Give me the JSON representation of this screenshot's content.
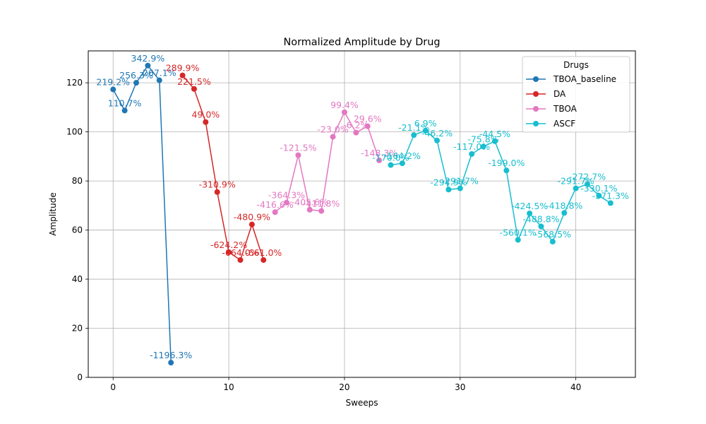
{
  "chart_data": {
    "type": "line",
    "title": "Normalized Amplitude by Drug",
    "xlabel": "Sweeps",
    "ylabel": "Amplitude",
    "xlim": [
      -2.15,
      45.15
    ],
    "ylim": [
      0,
      133
    ],
    "xticks": [
      0,
      10,
      20,
      30,
      40
    ],
    "yticks": [
      0,
      20,
      40,
      60,
      80,
      100,
      120
    ],
    "grid": true,
    "legend": {
      "title": "Drugs",
      "position": "top-right"
    },
    "series": [
      {
        "name": "TBOA_baseline",
        "color": "#1f77b4",
        "x": [
          0,
          1,
          2,
          3,
          4,
          5
        ],
        "y": [
          117.3,
          108.7,
          120.0,
          127.0,
          121.0,
          6.0
        ],
        "labels": [
          "219.2%",
          "110.7%",
          "256.3%",
          "342.9%",
          "267.1%",
          "-1196.3%"
        ]
      },
      {
        "name": "DA",
        "color": "#d62728",
        "x": [
          6,
          7,
          8,
          9,
          10,
          11,
          12,
          13
        ],
        "y": [
          123.0,
          117.5,
          104.0,
          75.5,
          51.0,
          47.8,
          62.3,
          47.8
        ],
        "labels": [
          "289.9%",
          "221.5%",
          "49.0%",
          "-310.9%",
          "-624.2%",
          "-664.0%",
          "-480.9%",
          "-661.0%"
        ]
      },
      {
        "name": "TBOA",
        "color": "#e377c2",
        "x": [
          14,
          15,
          16,
          17,
          18,
          19,
          20,
          21,
          22,
          23
        ],
        "y": [
          67.3,
          71.2,
          90.5,
          68.3,
          67.8,
          98.0,
          108.0,
          99.7,
          102.3,
          88.4
        ],
        "labels": [
          "-416.6%",
          "-364.3%",
          "-121.5%",
          "-405.6%",
          "-411.8%",
          "-23.0%",
          "99.4%",
          "-6.2%",
          "29.6%",
          "-148.3%"
        ]
      },
      {
        "name": "ASCF",
        "color": "#17becf",
        "x": [
          24,
          25,
          26,
          27,
          28,
          29,
          30,
          31,
          32,
          33,
          34,
          35,
          36,
          37,
          38,
          39,
          40,
          41,
          42,
          43
        ],
        "y": [
          86.5,
          87.2,
          98.7,
          100.5,
          96.5,
          76.5,
          77.0,
          91.0,
          94.0,
          96.2,
          84.3,
          56.0,
          66.8,
          61.5,
          55.3,
          67.0,
          77.0,
          78.7,
          74.0,
          71.0
        ],
        "labels": [
          "-170.0%",
          "-164.2%",
          "-21.1%",
          "6.9%",
          "-46.2%",
          "-294.9%",
          "-291.7%",
          "-117.0%",
          "-75.8%",
          "-44.5%",
          "-199.0%",
          "-560.1%",
          "-424.5%",
          "-488.8%",
          "-568.5%",
          "-418.8%",
          "-291.7%",
          "-272.7%",
          "-330.1%",
          "-371.3%"
        ]
      }
    ]
  }
}
